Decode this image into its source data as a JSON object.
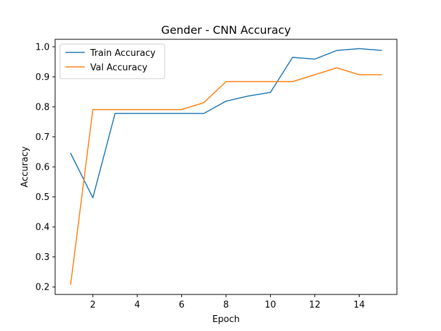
{
  "chart_data": {
    "type": "line",
    "title": "Gender - CNN Accuracy",
    "xlabel": "Epoch",
    "ylabel": "Accuracy",
    "x": [
      1,
      2,
      3,
      4,
      5,
      6,
      7,
      8,
      9,
      10,
      11,
      12,
      13,
      14,
      15
    ],
    "xlim": [
      0.3,
      15.7
    ],
    "ylim": [
      0.175,
      1.025
    ],
    "xticks": [
      2,
      4,
      6,
      8,
      10,
      12,
      14
    ],
    "yticks": [
      0.2,
      0.3,
      0.4,
      0.5,
      0.6,
      0.7,
      0.8,
      0.9,
      1.0
    ],
    "xtick_labels": [
      "2",
      "4",
      "6",
      "8",
      "10",
      "12",
      "14"
    ],
    "ytick_labels": [
      "0.2",
      "0.3",
      "0.4",
      "0.5",
      "0.6",
      "0.7",
      "0.8",
      "0.9",
      "1.0"
    ],
    "grid": false,
    "legend_position": "top-left",
    "series": [
      {
        "name": "Train Accuracy",
        "color": "#1f77b4",
        "values": [
          0.645,
          0.497,
          0.778,
          0.778,
          0.778,
          0.778,
          0.778,
          0.819,
          0.836,
          0.848,
          0.965,
          0.959,
          0.988,
          0.994,
          0.988
        ]
      },
      {
        "name": "Val Accuracy",
        "color": "#ff7f0e",
        "values": [
          0.209,
          0.791,
          0.791,
          0.791,
          0.791,
          0.791,
          0.814,
          0.884,
          0.884,
          0.884,
          0.884,
          0.907,
          0.93,
          0.907,
          0.907
        ]
      }
    ]
  }
}
